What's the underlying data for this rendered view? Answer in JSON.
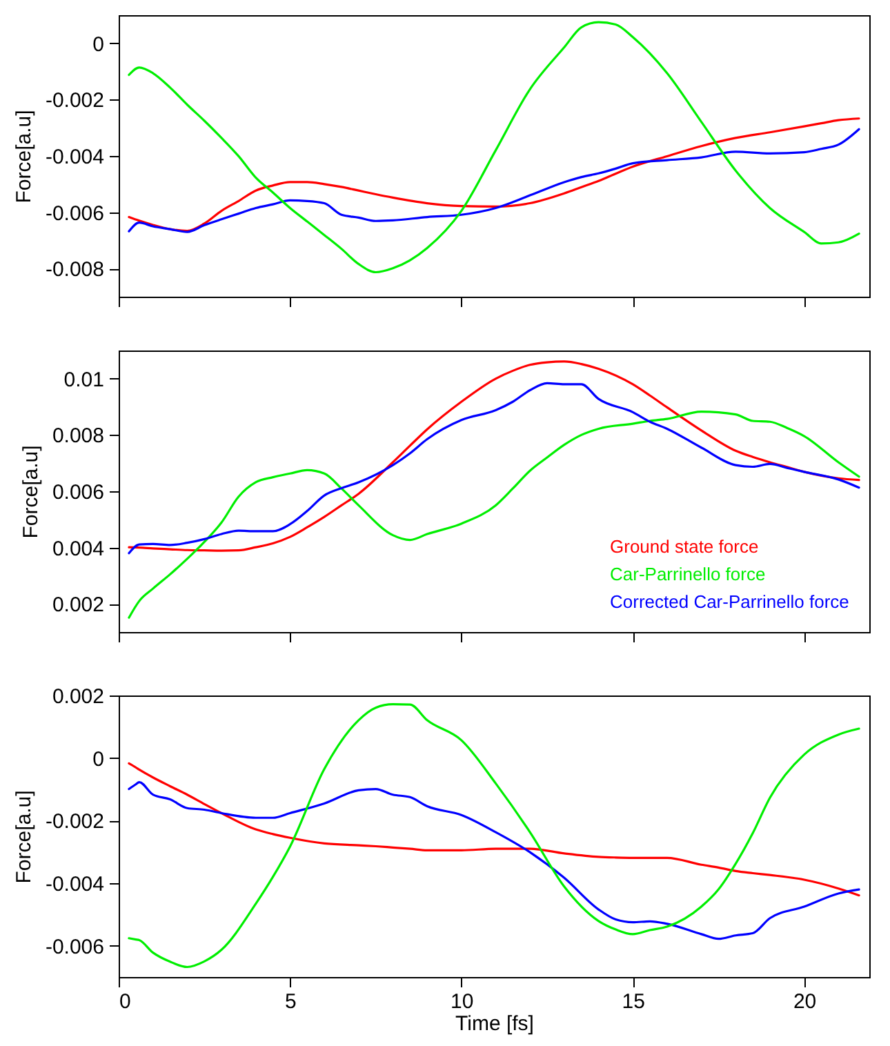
{
  "chart_data": [
    {
      "type": "line",
      "ylabel": "Force[a.u]",
      "x": [
        0.3,
        0.6,
        1,
        1.5,
        2,
        2.5,
        3,
        3.5,
        4,
        4.5,
        5,
        5.5,
        6,
        6.5,
        7,
        7.5,
        8,
        9,
        10,
        11,
        12,
        13,
        13.5,
        14,
        14.5,
        15,
        16,
        17,
        18,
        19,
        20,
        20.5,
        21,
        21.6
      ],
      "xlim": [
        0,
        21.9
      ],
      "xticks": [
        0,
        5,
        10,
        15,
        20
      ],
      "ylim": [
        -0.009,
        0.001
      ],
      "yticks": [
        -0.008,
        -0.006,
        -0.004,
        -0.002,
        0
      ],
      "tick_labels": "y",
      "grid": false,
      "series": [
        {
          "color": "#ff0000",
          "values": [
            -0.00617,
            -0.0063,
            -0.00645,
            -0.0066,
            -0.00666,
            -0.0064,
            -0.00595,
            -0.0056,
            -0.00523,
            -0.00505,
            -0.00493,
            -0.00493,
            -0.005,
            -0.0051,
            -0.00523,
            -0.00536,
            -0.00548,
            -0.00568,
            -0.00578,
            -0.0058,
            -0.00568,
            -0.00533,
            -0.00511,
            -0.00489,
            -0.00463,
            -0.00438,
            -0.00401,
            -0.00365,
            -0.00336,
            -0.00316,
            -0.00295,
            -0.00284,
            -0.00273,
            -0.00267
          ]
        },
        {
          "color": "#0000ff",
          "values": [
            -0.00668,
            -0.00637,
            -0.0065,
            -0.0066,
            -0.0067,
            -0.00646,
            -0.00625,
            -0.00605,
            -0.00585,
            -0.00572,
            -0.00558,
            -0.0056,
            -0.00568,
            -0.00609,
            -0.00619,
            -0.00631,
            -0.00629,
            -0.00617,
            -0.00609,
            -0.00585,
            -0.0054,
            -0.00493,
            -0.00475,
            -0.00462,
            -0.00445,
            -0.00426,
            -0.00415,
            -0.00405,
            -0.00385,
            -0.00391,
            -0.00387,
            -0.00375,
            -0.0036,
            -0.00305
          ]
        },
        {
          "color": "#00ee00",
          "values": [
            -0.00112,
            -0.00086,
            -0.00106,
            -0.00157,
            -0.00218,
            -0.00275,
            -0.00336,
            -0.00401,
            -0.00477,
            -0.0053,
            -0.00585,
            -0.00633,
            -0.00681,
            -0.0073,
            -0.00784,
            -0.00813,
            -0.00799,
            -0.00727,
            -0.00595,
            -0.0038,
            -0.00163,
            -0.00014,
            0.00057,
            0.00075,
            0.00067,
            0.00022,
            -0.00106,
            -0.00279,
            -0.00452,
            -0.00585,
            -0.0067,
            -0.00711,
            -0.00707,
            -0.00676
          ]
        }
      ]
    },
    {
      "type": "line",
      "ylabel": "Force[a.u]",
      "x": [
        0.3,
        0.6,
        1,
        1.5,
        2,
        2.5,
        3,
        3.5,
        4,
        4.5,
        5,
        5.5,
        6,
        6.5,
        7,
        8,
        8.5,
        9,
        10,
        11,
        11.5,
        12,
        12.5,
        13,
        13.5,
        14,
        15,
        15.5,
        16,
        17,
        18,
        18.5,
        19,
        19.5,
        20,
        21,
        21.6
      ],
      "xlim": [
        0,
        21.9
      ],
      "xticks": [
        0,
        5,
        10,
        15,
        20
      ],
      "ylim": [
        0.001,
        0.011
      ],
      "yticks": [
        0.002,
        0.004,
        0.006,
        0.008,
        0.01
      ],
      "tick_labels": "y",
      "legend": "bottom right",
      "grid": false,
      "series": [
        {
          "name": "Ground state force",
          "color": "#ff0000",
          "values": [
            0.00401,
            0.004,
            0.00397,
            0.00394,
            0.00391,
            0.0039,
            0.00389,
            0.0039,
            0.00401,
            0.00415,
            0.00438,
            0.00472,
            0.00509,
            0.0055,
            0.00591,
            0.00703,
            0.00762,
            0.0082,
            0.00918,
            0.01,
            0.01028,
            0.01049,
            0.01058,
            0.01061,
            0.01052,
            0.01035,
            0.0098,
            0.0094,
            0.00898,
            0.00816,
            0.00744,
            0.00722,
            0.00703,
            0.00686,
            0.00669,
            0.00646,
            0.0064
          ]
        },
        {
          "name": "Car-Parrinello force",
          "color": "#00ee00",
          "values": [
            0.00151,
            0.0021,
            0.00254,
            0.00305,
            0.0036,
            0.0042,
            0.00489,
            0.00581,
            0.00632,
            0.0065,
            0.00663,
            0.00675,
            0.00663,
            0.0061,
            0.0055,
            0.00444,
            0.00427,
            0.00448,
            0.00485,
            0.0055,
            0.0061,
            0.00673,
            0.0072,
            0.00765,
            0.008,
            0.00822,
            0.0084,
            0.0085,
            0.00857,
            0.00883,
            0.00873,
            0.0085,
            0.00847,
            0.00825,
            0.00796,
            0.00703,
            0.00652
          ]
        },
        {
          "name": "Corrected Car-Parrinello force",
          "color": "#0000ff",
          "values": [
            0.0038,
            0.00411,
            0.00413,
            0.00409,
            0.00417,
            0.0043,
            0.00448,
            0.0046,
            0.00458,
            0.00458,
            0.00483,
            0.0053,
            0.00585,
            0.00611,
            0.00632,
            0.00693,
            0.00735,
            0.00785,
            0.00853,
            0.00888,
            0.00918,
            0.00959,
            0.00984,
            0.0098,
            0.0098,
            0.00928,
            0.00881,
            0.00847,
            0.00822,
            0.00755,
            0.00693,
            0.00687,
            0.00697,
            0.00683,
            0.00669,
            0.00642,
            0.00613
          ]
        }
      ]
    },
    {
      "type": "line",
      "ylabel": "Force[a.u]",
      "xlabel": "Time [fs]",
      "x": [
        0.3,
        0.5,
        0.6,
        1,
        1.5,
        2,
        2.5,
        3,
        4,
        4.5,
        5,
        6,
        7,
        7.5,
        8,
        8.5,
        9,
        10,
        11,
        12,
        13,
        14,
        14.5,
        15,
        15.5,
        16,
        17,
        17.5,
        18,
        18.5,
        19,
        20,
        21,
        21.6
      ],
      "xlim": [
        0,
        21.9
      ],
      "xticks": [
        0,
        5,
        10,
        15,
        20
      ],
      "ylim": [
        -0.007,
        0.002
      ],
      "yticks": [
        -0.006,
        -0.004,
        -0.002,
        0,
        0.002
      ],
      "grid": false,
      "series": [
        {
          "color": "#ff0000",
          "values": [
            -0.00017,
            -0.0003,
            -0.00037,
            -0.00062,
            -0.0009,
            -0.00117,
            -0.00147,
            -0.00176,
            -0.00228,
            -0.00243,
            -0.00255,
            -0.00273,
            -0.00279,
            -0.00282,
            -0.00286,
            -0.0029,
            -0.00295,
            -0.00295,
            -0.0029,
            -0.0029,
            -0.00305,
            -0.00316,
            -0.00318,
            -0.00319,
            -0.00319,
            -0.00319,
            -0.00341,
            -0.0035,
            -0.00361,
            -0.00368,
            -0.00374,
            -0.00389,
            -0.00417,
            -0.00439
          ]
        },
        {
          "color": "#0000ff",
          "values": [
            -0.00099,
            -0.00084,
            -0.00077,
            -0.00117,
            -0.00132,
            -0.0016,
            -0.00165,
            -0.00176,
            -0.00191,
            -0.00191,
            -0.00176,
            -0.00145,
            -0.00103,
            -0.00099,
            -0.00117,
            -0.00125,
            -0.00154,
            -0.00182,
            -0.00237,
            -0.00301,
            -0.00383,
            -0.00484,
            -0.00516,
            -0.00525,
            -0.00522,
            -0.0053,
            -0.00563,
            -0.00578,
            -0.00567,
            -0.0056,
            -0.00512,
            -0.00475,
            -0.00433,
            -0.0042
          ]
        },
        {
          "color": "#00ee00",
          "values": [
            -0.00576,
            -0.0058,
            -0.00582,
            -0.00622,
            -0.00651,
            -0.00668,
            -0.0065,
            -0.00613,
            -0.00466,
            -0.0038,
            -0.00283,
            -0.00035,
            0.00121,
            0.00161,
            0.00172,
            0.00171,
            0.00121,
            0.00057,
            -0.00081,
            -0.00237,
            -0.00411,
            -0.00521,
            -0.00548,
            -0.00563,
            -0.0055,
            -0.00539,
            -0.00475,
            -0.0042,
            -0.00338,
            -0.0024,
            -0.00127,
            0.00011,
            0.00075,
            0.00094
          ]
        }
      ]
    }
  ]
}
